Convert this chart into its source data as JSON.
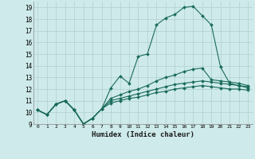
{
  "xlabel": "Humidex (Indice chaleur)",
  "ylabel": "",
  "xlim": [
    -0.5,
    23.5
  ],
  "ylim": [
    9,
    19.5
  ],
  "yticks": [
    9,
    10,
    11,
    12,
    13,
    14,
    15,
    16,
    17,
    18,
    19
  ],
  "xticks": [
    0,
    1,
    2,
    3,
    4,
    5,
    6,
    7,
    8,
    9,
    10,
    11,
    12,
    13,
    14,
    15,
    16,
    17,
    18,
    19,
    20,
    21,
    22,
    23
  ],
  "bg_color": "#ceeaea",
  "line_color": "#1a6b5a",
  "grid_color": "#b0cfcf",
  "lines": [
    [
      10.2,
      9.8,
      10.7,
      11.0,
      10.2,
      9.0,
      9.5,
      10.3,
      12.1,
      13.1,
      12.5,
      14.8,
      15.0,
      17.5,
      18.1,
      18.4,
      19.0,
      19.1,
      18.3,
      17.5,
      13.9,
      12.5,
      12.3,
      12.1
    ],
    [
      10.2,
      9.8,
      10.7,
      11.0,
      10.2,
      9.0,
      9.5,
      10.3,
      11.2,
      11.5,
      11.8,
      12.0,
      12.3,
      12.7,
      13.0,
      13.2,
      13.5,
      13.7,
      13.8,
      12.8,
      12.7,
      12.6,
      12.5,
      12.3
    ],
    [
      10.2,
      9.8,
      10.7,
      11.0,
      10.2,
      9.0,
      9.5,
      10.3,
      11.0,
      11.2,
      11.4,
      11.6,
      11.8,
      12.0,
      12.2,
      12.4,
      12.5,
      12.6,
      12.7,
      12.6,
      12.5,
      12.4,
      12.3,
      12.2
    ],
    [
      10.2,
      9.8,
      10.7,
      11.0,
      10.2,
      9.0,
      9.5,
      10.3,
      10.8,
      11.0,
      11.2,
      11.3,
      11.5,
      11.7,
      11.8,
      12.0,
      12.1,
      12.2,
      12.3,
      12.2,
      12.1,
      12.0,
      12.0,
      11.9
    ]
  ]
}
